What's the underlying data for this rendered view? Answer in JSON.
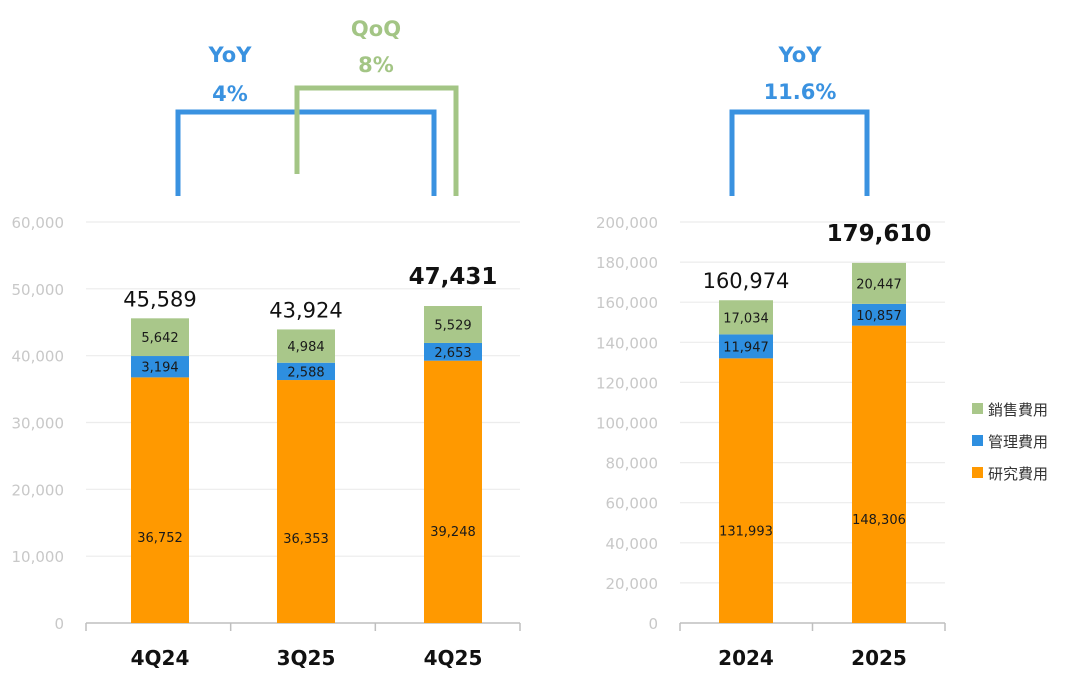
{
  "colors": {
    "sales": "#a9c78a",
    "admin": "#2e8fe0",
    "research": "#ff9900",
    "yoy": "#3a92e0",
    "qoq": "#a3c585",
    "grid": "#ececec",
    "tick": "#c8c8c8"
  },
  "legend": [
    "銷售費用",
    "管理費用",
    "研究費用"
  ],
  "annotations": {
    "quarterly_yoy": {
      "label": "YoY",
      "value": "4%"
    },
    "quarterly_qoq": {
      "label": "QoQ",
      "value": "8%"
    },
    "annual_yoy": {
      "label": "YoY",
      "value": "11.6%"
    }
  },
  "chart_data": [
    {
      "type": "bar",
      "stacked": true,
      "title": "",
      "categories": [
        "4Q24",
        "3Q25",
        "4Q25"
      ],
      "series": [
        {
          "name": "研究費用",
          "values": [
            36752,
            36353,
            39248
          ],
          "labels": [
            "36,752",
            "36,353",
            "39,248"
          ]
        },
        {
          "name": "管理費用",
          "values": [
            3194,
            2588,
            2653
          ],
          "labels": [
            "3,194",
            "2,588",
            "2,653"
          ]
        },
        {
          "name": "銷售費用",
          "values": [
            5642,
            4984,
            5529
          ],
          "labels": [
            "5,642",
            "4,984",
            "5,529"
          ]
        }
      ],
      "totals": [
        "45,589",
        "43,924",
        "47,431"
      ],
      "ylim": [
        0,
        60000
      ],
      "yticks": [
        "0",
        "10,000",
        "20,000",
        "30,000",
        "40,000",
        "50,000",
        "60,000"
      ],
      "grid": true
    },
    {
      "type": "bar",
      "stacked": true,
      "title": "",
      "categories": [
        "2024",
        "2025"
      ],
      "series": [
        {
          "name": "研究費用",
          "values": [
            131993,
            148306
          ],
          "labels": [
            "131,993",
            "148,306"
          ]
        },
        {
          "name": "管理費用",
          "values": [
            11947,
            10857
          ],
          "labels": [
            "11,947",
            "10,857"
          ]
        },
        {
          "name": "銷售費用",
          "values": [
            17034,
            20447
          ],
          "labels": [
            "17,034",
            "20,447"
          ]
        }
      ],
      "totals": [
        "160,974",
        "179,610"
      ],
      "ylim": [
        0,
        200000
      ],
      "yticks": [
        "0",
        "20,000",
        "40,000",
        "60,000",
        "80,000",
        "100,000",
        "120,000",
        "140,000",
        "160,000",
        "180,000",
        "200,000"
      ],
      "grid": true,
      "legend": "right"
    }
  ]
}
